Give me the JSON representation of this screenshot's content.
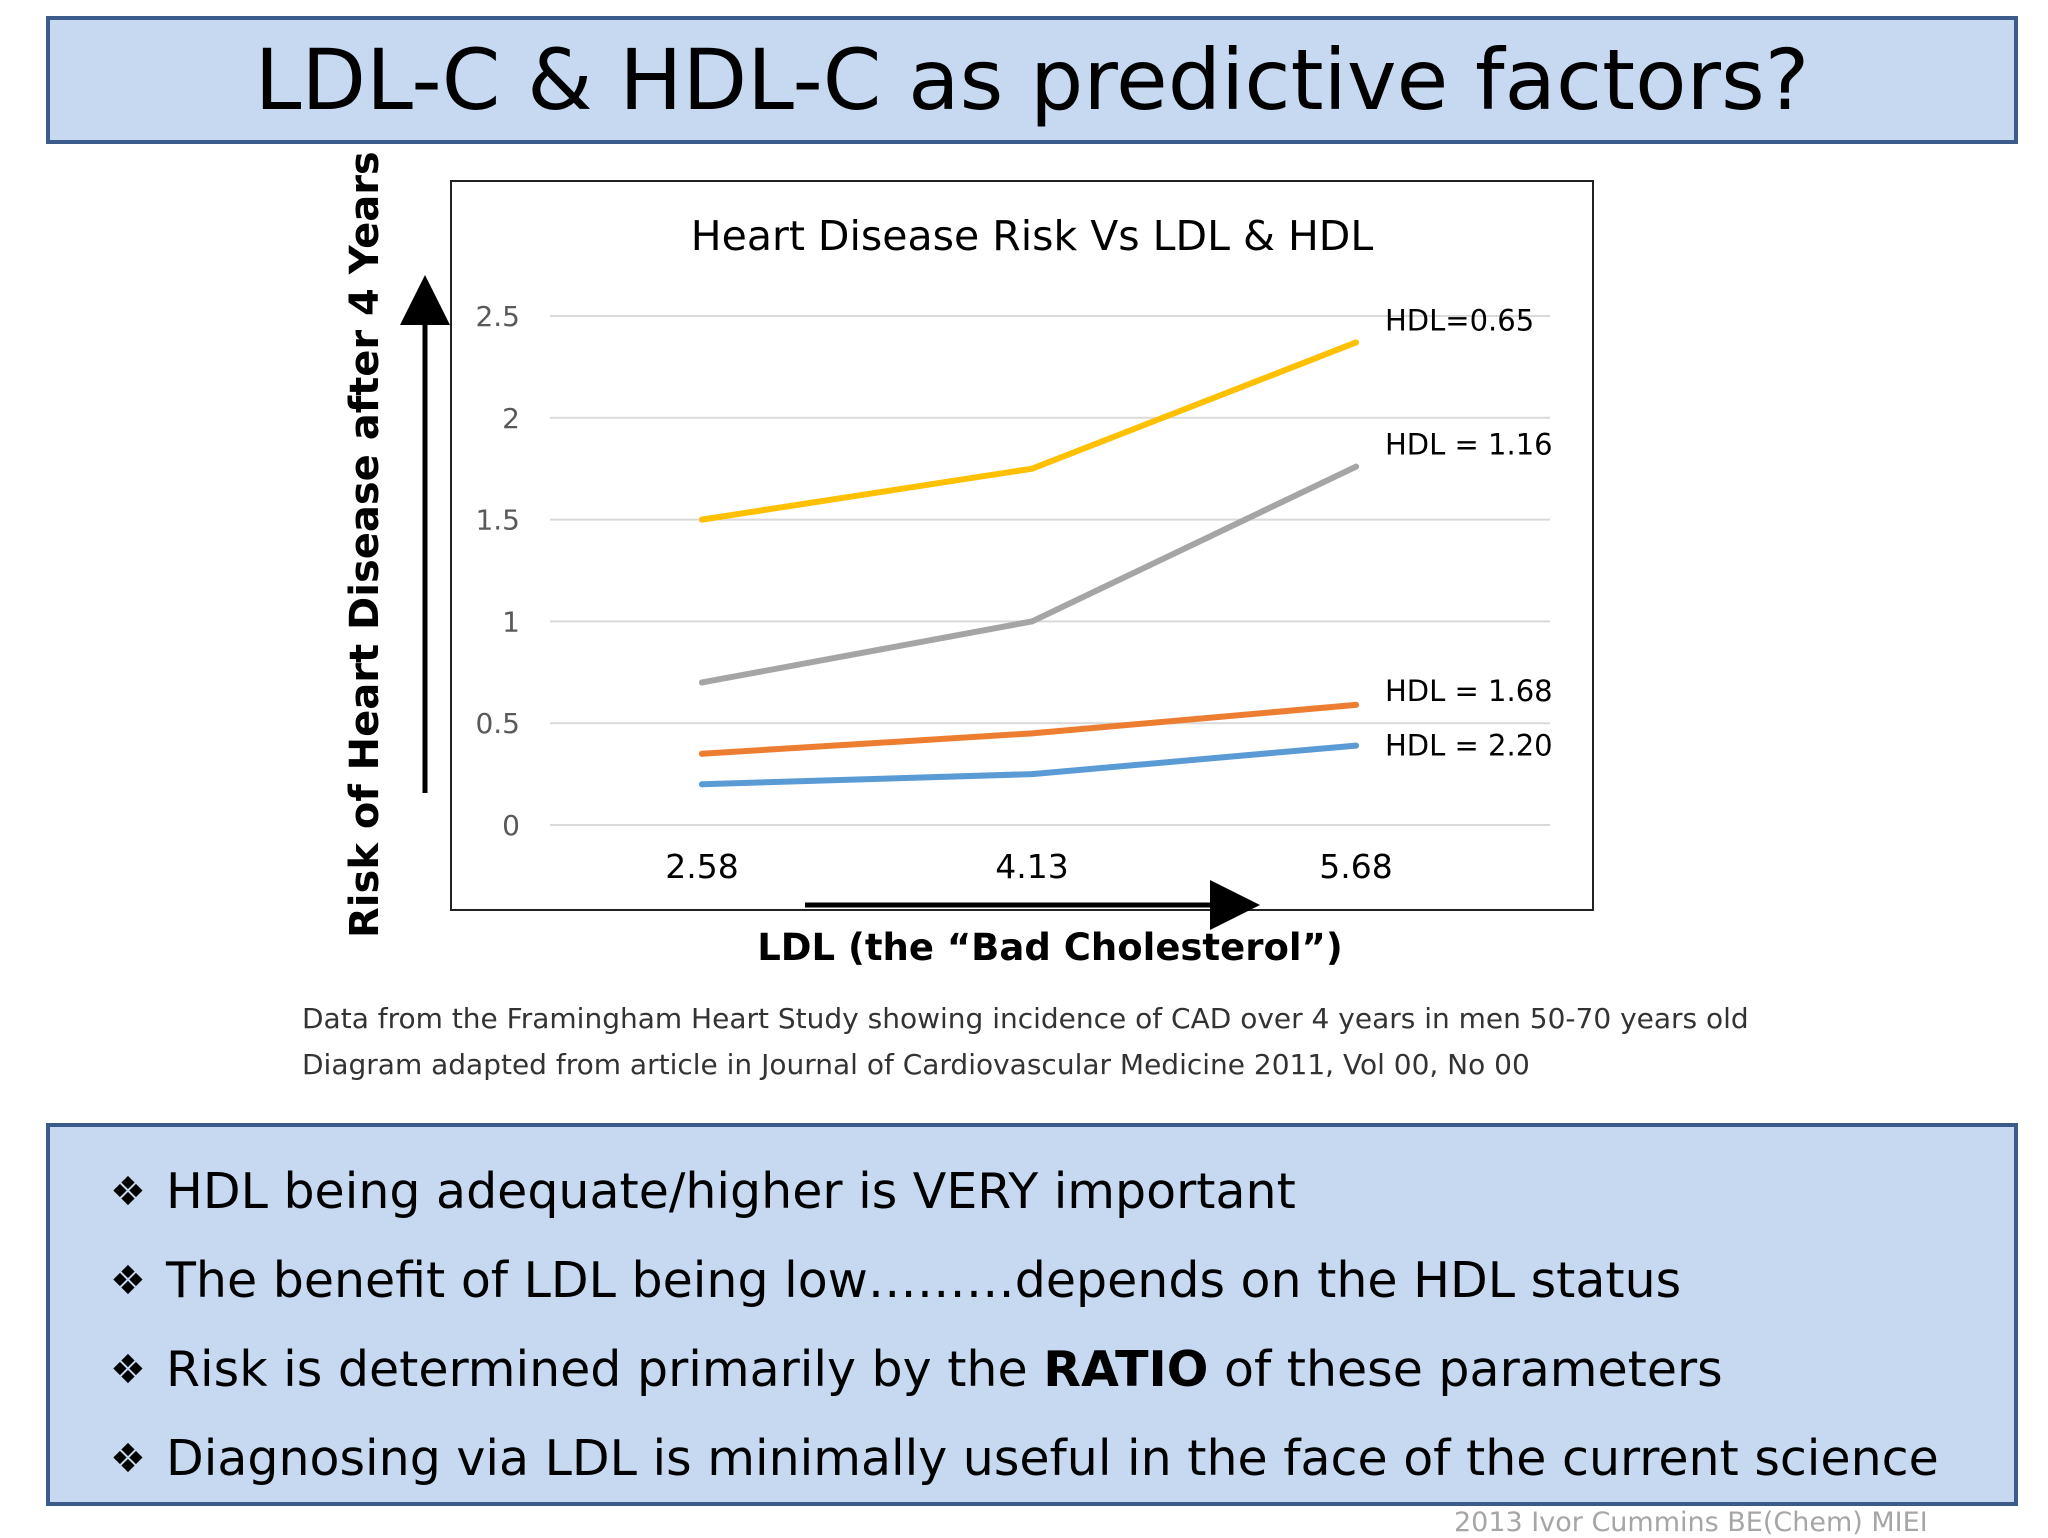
{
  "slide": {
    "title": "LDL-C & HDL-C as predictive factors?",
    "y_axis_label": "Risk of Heart Disease after 4 Years",
    "x_axis_label": "LDL (the “Bad Cholesterol”)",
    "source_lines": [
      "Data from the Framingham Heart Study showing incidence of CAD over 4 years in men 50-70 years old",
      "Diagram adapted from article in Journal of Cardiovascular Medicine 2011, Vol 00, No 00"
    ],
    "bullets": [
      {
        "icon": "diamond-bullet-icon",
        "before": "HDL being adequate/higher is VERY important",
        "strong": "",
        "after": ""
      },
      {
        "icon": "diamond-bullet-icon",
        "before": "The benefit of LDL being low………depends on the HDL status",
        "strong": "",
        "after": ""
      },
      {
        "icon": "diamond-bullet-icon",
        "before": "Risk is determined primarily by the ",
        "strong": "RATIO",
        "after": " of these parameters"
      },
      {
        "icon": "diamond-bullet-icon",
        "before": "Diagnosing via LDL is minimally useful in the face of the current science",
        "strong": "",
        "after": ""
      }
    ],
    "footer": "2013 Ivor Cummins BE(Chem) MIEI",
    "colors": {
      "panel_fill": "#c6d9f1",
      "panel_border": "#3b5b8a"
    }
  },
  "chart_data": {
    "type": "line",
    "title": "Heart Disease Risk Vs LDL & HDL",
    "xlabel": "LDL (the “Bad Cholesterol”)",
    "ylabel": "Risk of Heart Disease after 4 Years",
    "categories": [
      "2.58",
      "4.13",
      "5.68"
    ],
    "ylim": [
      0,
      2.5
    ],
    "yticks": [
      "0",
      "0.5",
      "1",
      "1.5",
      "2",
      "2.5"
    ],
    "grid": true,
    "legend": "inline labels at right end of each line",
    "series": [
      {
        "name": "HDL=0.65",
        "values": [
          1.5,
          1.75,
          2.37
        ],
        "color": "#ffc000"
      },
      {
        "name": "HDL = 1.16",
        "values": [
          0.7,
          1.0,
          1.76
        ],
        "color": "#a5a5a5"
      },
      {
        "name": "HDL = 1.68",
        "values": [
          0.35,
          0.45,
          0.59
        ],
        "color": "#ed7d31"
      },
      {
        "name": "HDL = 2.20",
        "values": [
          0.2,
          0.25,
          0.39
        ],
        "color": "#5b9bd5"
      }
    ]
  }
}
